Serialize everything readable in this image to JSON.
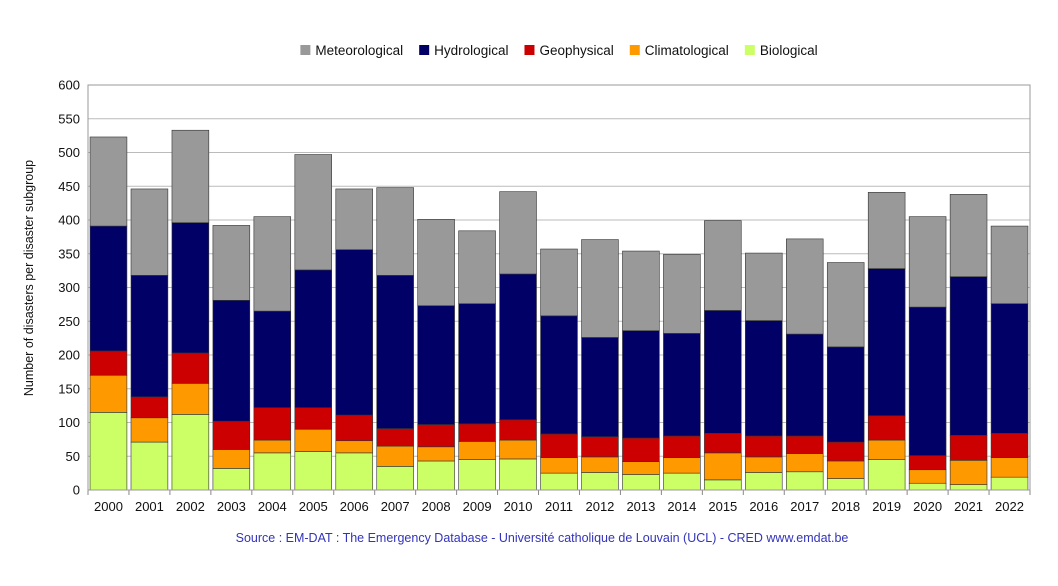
{
  "chart_data": {
    "type": "bar",
    "stacked": true,
    "categories": [
      "2000",
      "2001",
      "2002",
      "2003",
      "2004",
      "2005",
      "2006",
      "2007",
      "2008",
      "2009",
      "2010",
      "2011",
      "2012",
      "2013",
      "2014",
      "2015",
      "2016",
      "2017",
      "2018",
      "2019",
      "2020",
      "2021",
      "2022"
    ],
    "series": [
      {
        "name": "Biological",
        "color": "#ccff66",
        "values": [
          115,
          71,
          112,
          32,
          55,
          57,
          55,
          35,
          43,
          45,
          46,
          25,
          26,
          23,
          25,
          15,
          26,
          27,
          17,
          45,
          10,
          8,
          19
        ]
      },
      {
        "name": "Climatological",
        "color": "#ff9900",
        "values": [
          55,
          36,
          46,
          28,
          19,
          33,
          18,
          30,
          21,
          27,
          28,
          23,
          23,
          19,
          23,
          40,
          23,
          27,
          26,
          29,
          20,
          36,
          29
        ]
      },
      {
        "name": "Geophysical",
        "color": "#cc0000",
        "values": [
          36,
          31,
          45,
          42,
          48,
          32,
          38,
          26,
          33,
          26,
          30,
          35,
          30,
          35,
          32,
          29,
          31,
          26,
          28,
          36,
          21,
          37,
          36
        ]
      },
      {
        "name": "Hydrological",
        "color": "#000066",
        "values": [
          185,
          180,
          193,
          179,
          143,
          204,
          245,
          227,
          176,
          178,
          216,
          175,
          147,
          159,
          152,
          182,
          171,
          151,
          141,
          218,
          220,
          235,
          192
        ]
      },
      {
        "name": "Meteorological",
        "color": "#999999",
        "values": [
          132,
          128,
          137,
          111,
          140,
          171,
          90,
          130,
          128,
          108,
          122,
          99,
          145,
          118,
          117,
          133,
          100,
          141,
          125,
          113,
          134,
          122,
          115
        ]
      }
    ],
    "legend_order": [
      "Meteorological",
      "Hydrological",
      "Geophysical",
      "Climatological",
      "Biological"
    ],
    "ylabel": "Number of disasters per disaster subgroup",
    "xlabel": "",
    "title": "",
    "ylim": [
      0,
      600
    ],
    "yticks": [
      0,
      50,
      100,
      150,
      200,
      250,
      300,
      350,
      400,
      450,
      500,
      550,
      600
    ],
    "grid": true,
    "legend_position": "top-center",
    "source_text": "Source : EM-DAT : The Emergency Database - Université catholique de Louvain (UCL) - CRED  www.emdat.be"
  }
}
